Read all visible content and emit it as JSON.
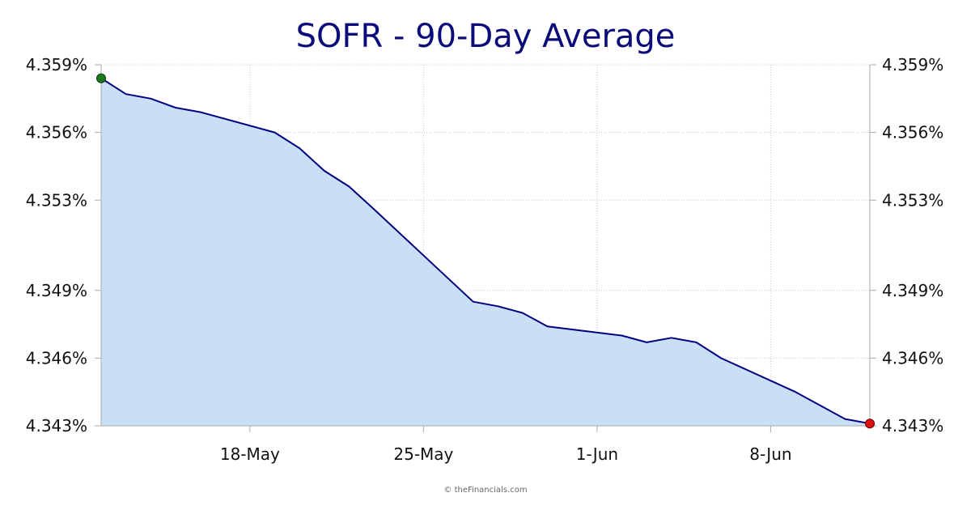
{
  "chart_data": {
    "type": "area",
    "title": "SOFR - 90-Day Average",
    "credit": "© theFinancials.com",
    "y_tick_labels": [
      "4.359%",
      "4.356%",
      "4.353%",
      "4.349%",
      "4.346%",
      "4.343%"
    ],
    "y_tick_values": [
      4.359,
      4.356,
      4.353,
      4.349,
      4.346,
      4.343
    ],
    "x_tick_labels": [
      "18-May",
      "25-May",
      "1-Jun",
      "8-Jun"
    ],
    "x_tick_dates": [
      "2025-05-18",
      "2025-05-25",
      "2025-06-01",
      "2025-06-08"
    ],
    "ylim": [
      4.343,
      4.359
    ],
    "xlim": [
      "2025-05-12",
      "2025-06-12"
    ],
    "grid": true,
    "colors": {
      "line": "#000080",
      "fill": "#c9dff5",
      "title": "#0b0b7a",
      "start_marker": "#1a7a1a",
      "end_marker": "#dd1111"
    },
    "series": [
      {
        "x": [
          "2025-05-12",
          "2025-05-13",
          "2025-05-14",
          "2025-05-15",
          "2025-05-16",
          "2025-05-19",
          "2025-05-20",
          "2025-05-21",
          "2025-05-22",
          "2025-05-23",
          "2025-05-27",
          "2025-05-28",
          "2025-05-29",
          "2025-05-30",
          "2025-06-02",
          "2025-06-03",
          "2025-06-04",
          "2025-06-05",
          "2025-06-06",
          "2025-06-09",
          "2025-06-10",
          "2025-06-11",
          "2025-06-12"
        ],
        "y": [
          4.3584,
          4.3577,
          4.3575,
          4.3571,
          4.3569,
          4.356,
          4.3553,
          4.3543,
          4.3536,
          4.3526,
          4.3485,
          4.3483,
          4.348,
          4.3474,
          4.347,
          4.3467,
          4.3469,
          4.3467,
          4.346,
          4.3445,
          4.3439,
          4.3433,
          4.3431
        ]
      }
    ]
  }
}
